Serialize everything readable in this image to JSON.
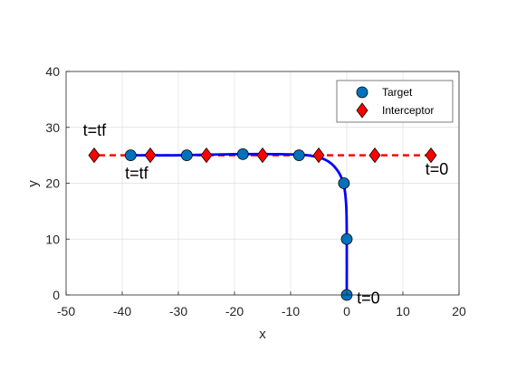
{
  "chart_data": {
    "type": "scatter",
    "title": "",
    "xlabel": "x",
    "ylabel": "y",
    "xlim": [
      -50,
      20
    ],
    "ylim": [
      0,
      40
    ],
    "xticks": [
      -50,
      -40,
      -30,
      -20,
      -10,
      0,
      10,
      20
    ],
    "yticks": [
      0,
      10,
      20,
      30,
      40
    ],
    "grid": true,
    "legend_position": "top-right",
    "series": [
      {
        "name": "Target",
        "marker": "circle",
        "color": "#0072BD",
        "points": [
          [
            0,
            0
          ],
          [
            0,
            10
          ],
          [
            -0.5,
            20
          ],
          [
            -8.5,
            25
          ],
          [
            -18.5,
            25.2
          ],
          [
            -28.5,
            25
          ],
          [
            -38.5,
            25
          ]
        ]
      },
      {
        "name": "Interceptor",
        "marker": "diamond",
        "color": "#FF0000",
        "points": [
          [
            15,
            25
          ],
          [
            5,
            25
          ],
          [
            -5,
            25
          ],
          [
            -15,
            25
          ],
          [
            -25,
            25
          ],
          [
            -35,
            25
          ],
          [
            -45,
            25
          ]
        ]
      }
    ],
    "target_path": {
      "color": "#0000FF",
      "points": [
        [
          0,
          0
        ],
        [
          0,
          10
        ],
        [
          -0.1,
          16
        ],
        [
          -0.6,
          20
        ],
        [
          -1.8,
          22.5
        ],
        [
          -3.8,
          24.2
        ],
        [
          -7,
          25
        ],
        [
          -12,
          25.2
        ],
        [
          -20,
          25.2
        ],
        [
          -30,
          25
        ],
        [
          -38.5,
          25
        ]
      ]
    },
    "interceptor_path": {
      "color": "#FF0000",
      "style": "dashed",
      "points": [
        [
          15,
          25
        ],
        [
          -45,
          25
        ]
      ]
    },
    "annotations": [
      {
        "text": "t=0",
        "x": 1.8,
        "y": -1.5,
        "anchor": "start"
      },
      {
        "text": "t=0",
        "x": 14,
        "y": 21.5,
        "anchor": "start"
      },
      {
        "text": "t=tf",
        "x": -47,
        "y": 28.5,
        "anchor": "start"
      },
      {
        "text": "t=tf",
        "x": -39.5,
        "y": 20.8,
        "anchor": "start"
      }
    ]
  }
}
